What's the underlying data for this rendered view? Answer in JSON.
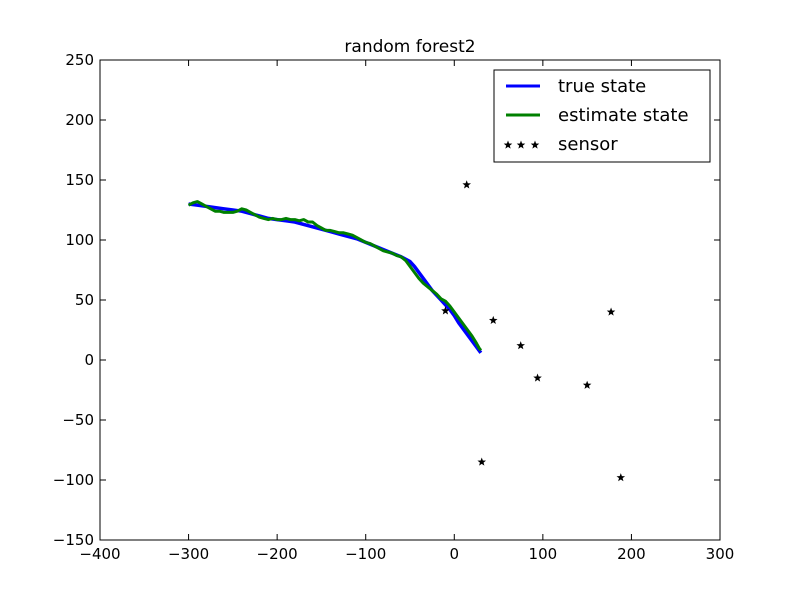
{
  "chart_data": {
    "type": "line",
    "title": "random forest2",
    "xlabel": "",
    "ylabel": "",
    "xlim": [
      -400,
      300
    ],
    "ylim": [
      -150,
      250
    ],
    "xticks": [
      -400,
      -300,
      -200,
      -100,
      0,
      100,
      200,
      300
    ],
    "yticks": [
      -150,
      -100,
      -50,
      0,
      50,
      100,
      150,
      200,
      250
    ],
    "xtick_labels": [
      "−400",
      "−300",
      "−200",
      "−100",
      "0",
      "100",
      "200",
      "300"
    ],
    "ytick_labels": [
      "−150",
      "−100",
      "−50",
      "0",
      "50",
      "100",
      "150",
      "200",
      "250"
    ],
    "grid": false,
    "legend_position": "top-right",
    "legend": [
      {
        "label": "true state",
        "style": "line",
        "color": "#0000ff"
      },
      {
        "label": "estimate state",
        "style": "line",
        "color": "#008000"
      },
      {
        "label": "sensor",
        "style": "star",
        "color": "#000000"
      }
    ],
    "series": [
      {
        "name": "true state",
        "color": "#0000ff",
        "x": [
          -300,
          -290,
          -280,
          -270,
          -260,
          -250,
          -240,
          -230,
          -220,
          -210,
          -200,
          -190,
          -180,
          -170,
          -160,
          -150,
          -140,
          -130,
          -120,
          -110,
          -100,
          -90,
          -80,
          -70,
          -60,
          -50,
          -45,
          -40,
          -35,
          -30,
          -25,
          -20,
          -15,
          -10,
          -5,
          0,
          5,
          10,
          15,
          20,
          25,
          28,
          30
        ],
        "y": [
          130,
          129,
          128,
          127,
          126,
          125,
          124,
          122,
          120,
          118,
          117,
          116,
          115,
          113,
          111,
          109,
          107,
          105,
          103,
          101,
          98,
          95,
          92,
          89,
          86,
          82,
          78,
          73,
          68,
          63,
          58,
          54,
          50,
          46,
          42,
          37,
          31,
          26,
          21,
          16,
          11,
          8,
          6
        ]
      },
      {
        "name": "estimate state",
        "color": "#008000",
        "x": [
          -300,
          -295,
          -290,
          -285,
          -280,
          -275,
          -270,
          -265,
          -260,
          -255,
          -250,
          -245,
          -240,
          -235,
          -230,
          -225,
          -220,
          -215,
          -210,
          -205,
          -200,
          -195,
          -190,
          -185,
          -180,
          -175,
          -170,
          -165,
          -160,
          -155,
          -150,
          -145,
          -140,
          -135,
          -130,
          -125,
          -120,
          -115,
          -110,
          -105,
          -100,
          -95,
          -90,
          -85,
          -80,
          -75,
          -70,
          -65,
          -60,
          -55,
          -50,
          -45,
          -40,
          -35,
          -30,
          -25,
          -20,
          -15,
          -10,
          -5,
          0,
          5,
          10,
          15,
          20,
          25,
          28,
          30
        ],
        "y": [
          129,
          131,
          132,
          130,
          128,
          126,
          124,
          124,
          123,
          123,
          123,
          124,
          126,
          125,
          123,
          121,
          119,
          118,
          117,
          118,
          117,
          117,
          118,
          117,
          117,
          116,
          117,
          115,
          115,
          112,
          110,
          108,
          108,
          107,
          106,
          106,
          105,
          104,
          102,
          100,
          98,
          97,
          95,
          93,
          91,
          90,
          89,
          87,
          86,
          83,
          78,
          73,
          68,
          64,
          61,
          58,
          55,
          51,
          49,
          45,
          40,
          35,
          30,
          25,
          20,
          14,
          10,
          8
        ]
      }
    ],
    "sensor": {
      "name": "sensor",
      "color": "#000000",
      "x": [
        14,
        -10,
        44,
        75,
        94,
        150,
        177,
        31,
        188
      ],
      "y": [
        146,
        41,
        33,
        12,
        -15,
        -21,
        40,
        -85,
        -98
      ]
    }
  }
}
